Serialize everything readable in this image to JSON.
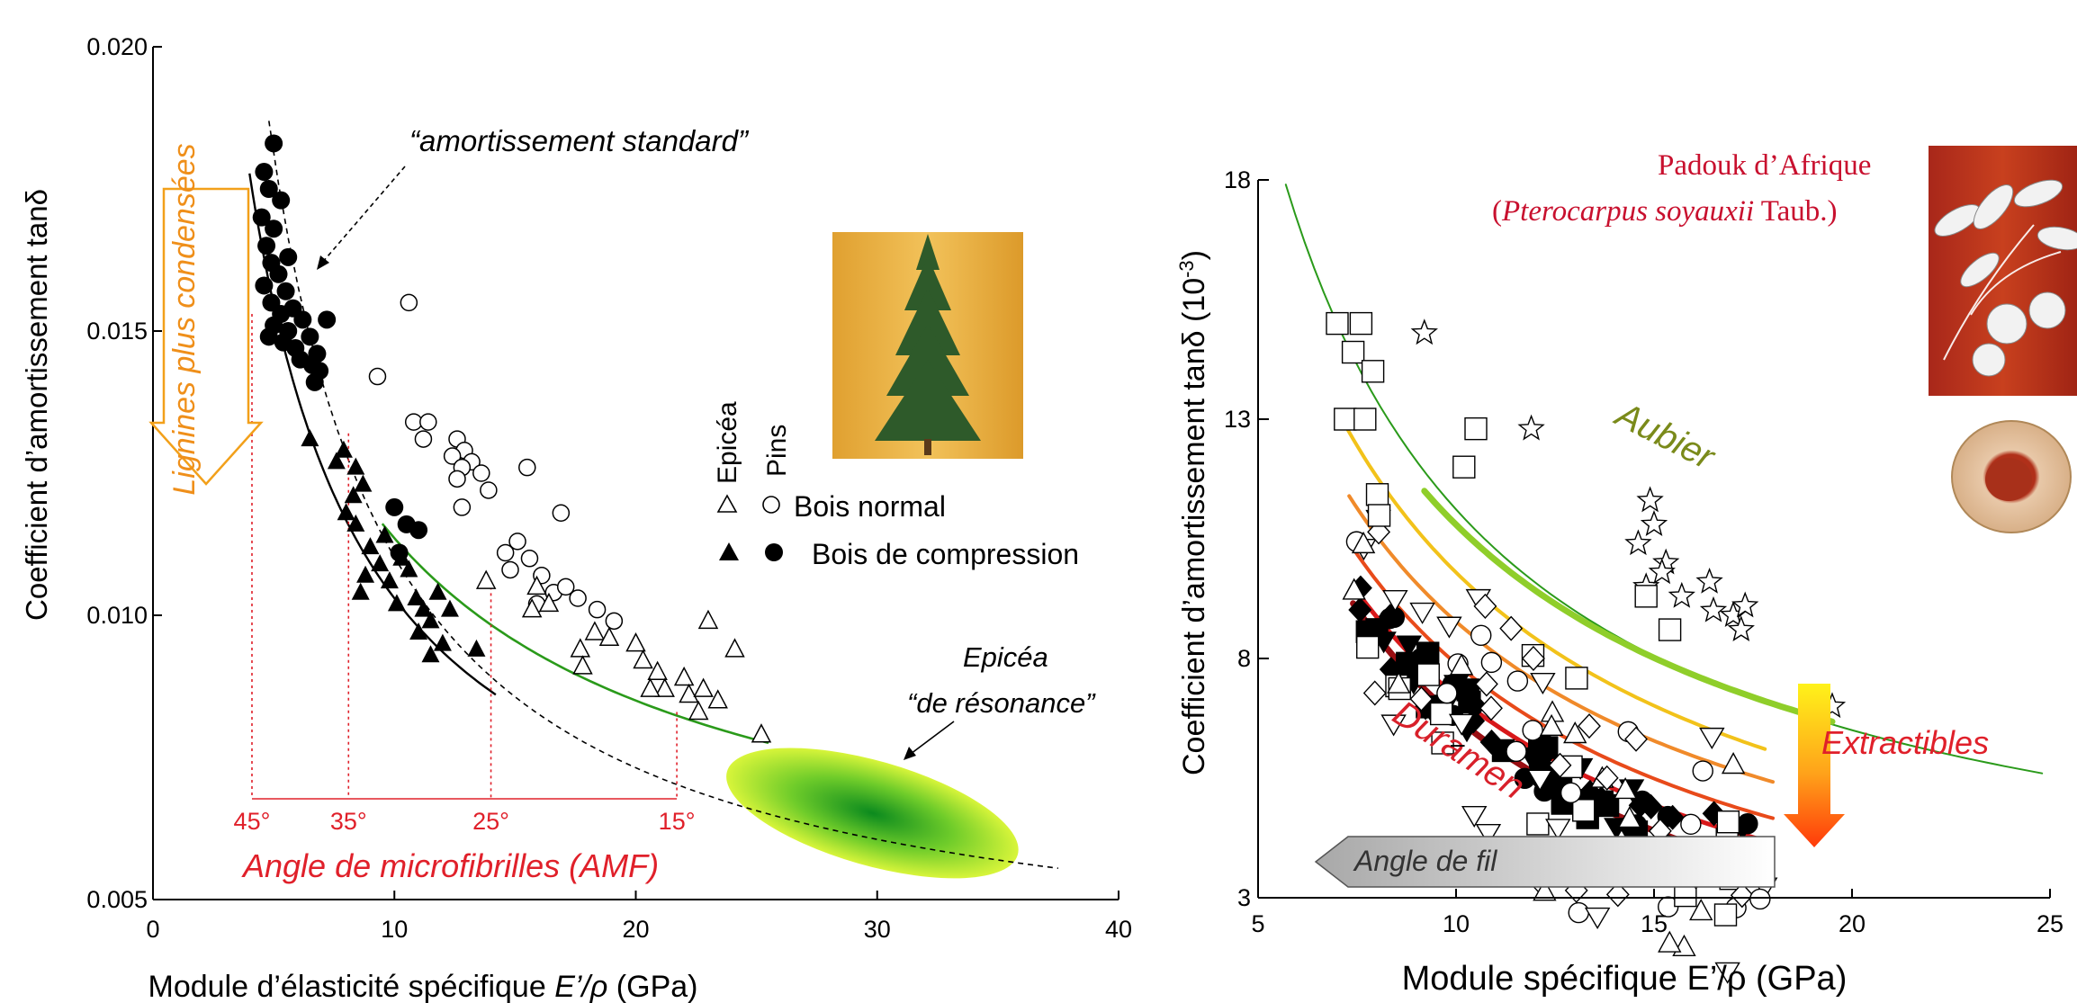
{
  "chart_data": [
    {
      "type": "scatter",
      "xlabel_main": "Module d’élasticité spécifique ",
      "xlabel_italic": "E’/ρ",
      "xlabel_unit": " (GPa)",
      "ylabel": "Coefficient d’amortissement tanδ",
      "xlim": [
        0,
        40
      ],
      "ylim": [
        0.005,
        0.02
      ],
      "x_ticks": [
        "0",
        "10",
        "20",
        "30",
        "40"
      ],
      "y_ticks": [
        "0.005",
        "0.010",
        "0.015",
        "0.020"
      ],
      "legend": {
        "col_epicea": "Epicéa",
        "col_pins": "Pins",
        "row_normal": "Bois normal",
        "row_compression": "Bois de compression"
      },
      "annotations": {
        "standard_damping": "“amortissement standard”",
        "lignin": "Lignines plus condensées",
        "resonance_line1": "Epicéa",
        "resonance_line2": "“de résonance”",
        "amf_title": "Angle de microfibrilles (AMF)",
        "amf_angles": [
          {
            "label": "45°",
            "x": 4.1
          },
          {
            "label": "35°",
            "x": 8.1
          },
          {
            "label": "25°",
            "x": 14.0
          },
          {
            "label": "15°",
            "x": 21.7
          }
        ]
      },
      "series": [
        {
          "name": "Pins — Bois de compression",
          "marker": "circle-filled",
          "points": [
            [
              5.0,
              0.0183
            ],
            [
              4.6,
              0.0178
            ],
            [
              4.8,
              0.0175
            ],
            [
              5.3,
              0.0173
            ],
            [
              4.5,
              0.017
            ],
            [
              5.0,
              0.0168
            ],
            [
              4.7,
              0.0165
            ],
            [
              5.6,
              0.0163
            ],
            [
              4.9,
              0.0162
            ],
            [
              5.2,
              0.016
            ],
            [
              4.6,
              0.0158
            ],
            [
              5.5,
              0.0157
            ],
            [
              4.9,
              0.0155
            ],
            [
              5.8,
              0.0154
            ],
            [
              5.3,
              0.0153
            ],
            [
              6.2,
              0.0152
            ],
            [
              5.0,
              0.0151
            ],
            [
              5.6,
              0.015
            ],
            [
              6.5,
              0.0149
            ],
            [
              5.4,
              0.0148
            ],
            [
              5.9,
              0.0147
            ],
            [
              6.8,
              0.0146
            ],
            [
              6.1,
              0.0145
            ],
            [
              6.6,
              0.0144
            ],
            [
              6.9,
              0.0143
            ],
            [
              6.7,
              0.0141
            ],
            [
              7.2,
              0.0152
            ],
            [
              4.8,
              0.0149
            ],
            [
              10.0,
              0.0119
            ],
            [
              10.5,
              0.0116
            ],
            [
              11.0,
              0.0115
            ],
            [
              10.2,
              0.0111
            ]
          ]
        },
        {
          "name": "Epicéa — Bois de compression",
          "marker": "triangle-filled",
          "points": [
            [
              6.5,
              0.0131
            ],
            [
              7.6,
              0.0127
            ],
            [
              7.9,
              0.0129
            ],
            [
              8.4,
              0.0126
            ],
            [
              8.3,
              0.0121
            ],
            [
              8.0,
              0.0118
            ],
            [
              8.7,
              0.0123
            ],
            [
              8.4,
              0.0116
            ],
            [
              9.0,
              0.0112
            ],
            [
              9.4,
              0.0109
            ],
            [
              8.8,
              0.0107
            ],
            [
              9.8,
              0.0106
            ],
            [
              8.6,
              0.0104
            ],
            [
              10.1,
              0.0102
            ],
            [
              10.6,
              0.0108
            ],
            [
              10.9,
              0.0103
            ],
            [
              11.2,
              0.0101
            ],
            [
              11.5,
              0.0099
            ],
            [
              11.0,
              0.0097
            ],
            [
              11.8,
              0.0104
            ],
            [
              12.3,
              0.0101
            ],
            [
              12.0,
              0.0095
            ],
            [
              11.5,
              0.0093
            ],
            [
              10.3,
              0.011
            ],
            [
              9.6,
              0.0114
            ],
            [
              13.4,
              0.0094
            ]
          ]
        },
        {
          "name": "Pins — Bois normal",
          "marker": "circle-open",
          "points": [
            [
              10.6,
              0.0155
            ],
            [
              9.3,
              0.0142
            ],
            [
              10.8,
              0.0134
            ],
            [
              11.2,
              0.0131
            ],
            [
              11.4,
              0.0134
            ],
            [
              12.6,
              0.0131
            ],
            [
              12.9,
              0.0129
            ],
            [
              12.4,
              0.0128
            ],
            [
              13.2,
              0.0127
            ],
            [
              12.8,
              0.0126
            ],
            [
              13.6,
              0.0125
            ],
            [
              12.6,
              0.0124
            ],
            [
              13.9,
              0.0122
            ],
            [
              15.5,
              0.0126
            ],
            [
              16.9,
              0.0118
            ],
            [
              12.8,
              0.0119
            ],
            [
              14.6,
              0.0111
            ],
            [
              15.1,
              0.0113
            ],
            [
              15.6,
              0.011
            ],
            [
              14.8,
              0.0108
            ],
            [
              16.1,
              0.0107
            ],
            [
              16.6,
              0.0104
            ],
            [
              17.1,
              0.0105
            ],
            [
              17.6,
              0.0103
            ],
            [
              15.9,
              0.0102
            ],
            [
              18.4,
              0.0101
            ],
            [
              19.1,
              0.0099
            ]
          ]
        },
        {
          "name": "Epicéa — Bois normal",
          "marker": "triangle-open",
          "points": [
            [
              13.8,
              0.0106
            ],
            [
              15.7,
              0.0101
            ],
            [
              15.9,
              0.0105
            ],
            [
              16.4,
              0.0102
            ],
            [
              17.7,
              0.0094
            ],
            [
              17.8,
              0.0091
            ],
            [
              18.3,
              0.0097
            ],
            [
              18.9,
              0.0096
            ],
            [
              20.0,
              0.0095
            ],
            [
              20.3,
              0.0092
            ],
            [
              20.9,
              0.009
            ],
            [
              21.2,
              0.0087
            ],
            [
              22.0,
              0.0089
            ],
            [
              22.2,
              0.0086
            ],
            [
              22.8,
              0.0087
            ],
            [
              23.0,
              0.0099
            ],
            [
              23.4,
              0.0085
            ],
            [
              24.1,
              0.0094
            ],
            [
              25.2,
              0.0079
            ],
            [
              22.6,
              0.0083
            ],
            [
              20.6,
              0.0087
            ]
          ]
        }
      ]
    },
    {
      "type": "scatter",
      "xlabel": "Module spécifique E’/ρ (GPa)",
      "ylabel_main": "Coefficient d’amortissement tanδ (10",
      "ylabel_sup": "-3",
      "ylabel_end": ")",
      "xlim": [
        5,
        25
      ],
      "ylim": [
        3,
        18
      ],
      "x_ticks": [
        "5",
        "10",
        "15",
        "20",
        "25"
      ],
      "y_ticks": [
        "3",
        "8",
        "13",
        "18"
      ],
      "annotations": {
        "species_line1": "Padouk d’Afrique",
        "species_open": "(",
        "species_italic": "Pterocarpus soyauxii",
        "species_end": " Taub.)",
        "aubier": "Aubier",
        "duramen": "Duramen",
        "extractibles": "Extractibles",
        "grain_angle": "Angle de fil"
      }
    }
  ],
  "colors": {
    "green_curve": "#2a9a1a",
    "aubier_curve": "#8fce2a",
    "red_text": "#e0202a",
    "orange_text": "#ef8f1a",
    "padouk_text": "#c8102e",
    "aubier_text": "#7a8a1a"
  }
}
